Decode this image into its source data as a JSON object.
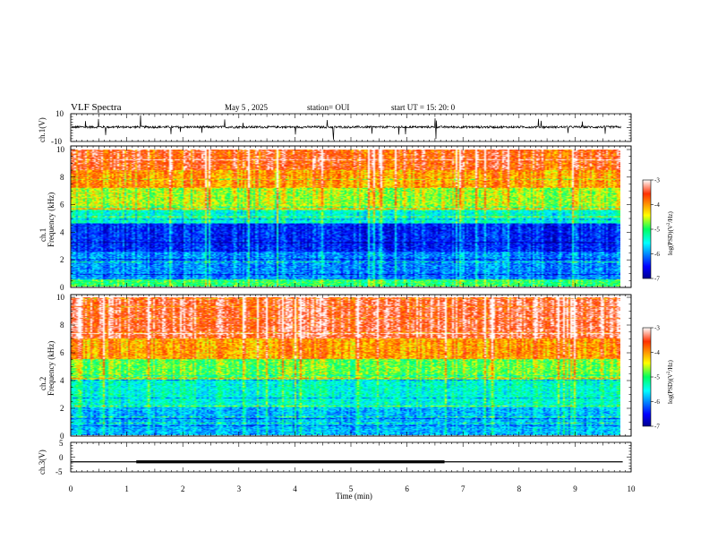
{
  "header": {
    "title": "VLF Spectra",
    "date": "May 5 , 2025",
    "station": "station= OUI",
    "start": "start UT = 15: 20: 0"
  },
  "chart_data": [
    {
      "type": "line",
      "panel": "ch1-waveform",
      "ylabel": "ch.1(V)",
      "ylim": [
        -10,
        10
      ],
      "yticks": [
        "10",
        "-10"
      ],
      "xlim": [
        0,
        10
      ],
      "trace": "noise waveform centred slightly above 0 V with amplitude about ±1 V and spikes up to ±10 V"
    },
    {
      "type": "heatmap",
      "panel": "ch1-spectrogram",
      "ylabel": "ch.1 Frequency (kHz)",
      "ylim": [
        0,
        10
      ],
      "yticks": [
        "0",
        "2",
        "4",
        "6",
        "8",
        "10"
      ],
      "xlim": [
        0,
        9.85
      ],
      "colorbar": {
        "label": "log(PSD)(V²/Hz)",
        "range": [
          -7,
          -3
        ],
        "ticks": [
          "-3",
          "-4",
          "-5",
          "-6",
          "-7"
        ]
      },
      "bands_khz_log_psd": [
        [
          0,
          0.5,
          -5.0
        ],
        [
          0.5,
          2.5,
          -6.0
        ],
        [
          2.5,
          4.6,
          -6.4
        ],
        [
          4.6,
          5.6,
          -5.4
        ],
        [
          5.6,
          7.2,
          -4.6
        ],
        [
          7.2,
          8.5,
          -4.0
        ],
        [
          8.5,
          10,
          -3.6
        ]
      ]
    },
    {
      "type": "heatmap",
      "panel": "ch2-spectrogram",
      "ylabel": "ch.2 Frequency (kHz)",
      "ylim": [
        0,
        10
      ],
      "yticks": [
        "0",
        "2",
        "4",
        "6",
        "8",
        "10"
      ],
      "xlim": [
        0,
        9.85
      ],
      "colorbar": {
        "label": "log(PSD)(V²/Hz)",
        "range": [
          -7,
          -3
        ],
        "ticks": [
          "-3",
          "-4",
          "-5",
          "-6",
          "-7"
        ]
      },
      "bands_khz_log_psd": [
        [
          0,
          2.0,
          -5.8
        ],
        [
          2.0,
          4.0,
          -5.4
        ],
        [
          4.0,
          5.5,
          -4.8
        ],
        [
          5.5,
          7.0,
          -4.0
        ],
        [
          7.0,
          10,
          -3.4
        ]
      ]
    },
    {
      "type": "line",
      "panel": "ch3-level",
      "ylabel": "ch.3(V)",
      "ylim": [
        -5,
        5
      ],
      "yticks": [
        "5",
        "0",
        "-5"
      ],
      "xlim": [
        0,
        10
      ],
      "xlabel": "Time (min)",
      "xticks": [
        "0",
        "1",
        "2",
        "3",
        "4",
        "5",
        "6",
        "7",
        "8",
        "9",
        "10"
      ],
      "baseline_v": -1.6,
      "thick_segment": {
        "x_start": 1.17,
        "x_end": 6.67,
        "value_v": -1.6
      }
    }
  ]
}
